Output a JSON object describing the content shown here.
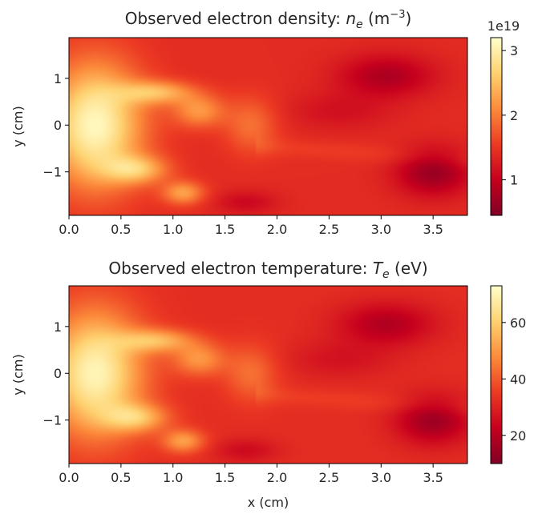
{
  "chart_data": [
    {
      "type": "heatmap",
      "title": "Observed electron density: n_e (m⁻³)",
      "title_parts": {
        "prefix": "Observed electron density: ",
        "var_main": "n",
        "var_sub": "e",
        "unit_open": " (m",
        "unit_sup": "−3",
        "unit_close": ")"
      },
      "xlabel": "",
      "ylabel": "y (cm)",
      "xlim": [
        0.0,
        3.83
      ],
      "ylim": [
        -1.93,
        1.87
      ],
      "x_ticks": [
        0.0,
        0.5,
        1.0,
        1.5,
        2.0,
        2.5,
        3.0,
        3.5
      ],
      "x_tick_labels": [
        "0.0",
        "0.5",
        "1.0",
        "1.5",
        "2.0",
        "2.5",
        "3.0",
        "3.5"
      ],
      "y_ticks": [
        1,
        0,
        -1
      ],
      "y_tick_labels": [
        "1",
        "0",
        "−1"
      ],
      "colormap": "YlOrRd_r",
      "colorbar": {
        "range": [
          4.5e+18,
          3.2e+19
        ],
        "ticks": [
          1e+19,
          2e+19,
          3e+19
        ],
        "tick_labels": [
          "1",
          "2",
          "3"
        ],
        "offset_label": "1e19"
      },
      "field": {
        "background": 1.35e+19,
        "peak": 3.2e+19,
        "minimum": 4.5e+18,
        "features": [
          {
            "x": 0.3,
            "y": 0.15,
            "value": 3.1e+19
          },
          {
            "x": 0.25,
            "y": 0.95,
            "value": 2.6e+19
          },
          {
            "x": 0.9,
            "y": 0.75,
            "value": 2.2e+19
          },
          {
            "x": 1.05,
            "y": -1.4,
            "value": 2.2e+19
          },
          {
            "x": 0.6,
            "y": -0.95,
            "value": 2.4e+19
          },
          {
            "x": 3.5,
            "y": -1.0,
            "value": 5e+18
          },
          {
            "x": 3.0,
            "y": 1.05,
            "value": 7e+18
          }
        ]
      }
    },
    {
      "type": "heatmap",
      "title": "Observed electron temperature: T_e (eV)",
      "title_parts": {
        "prefix": "Observed electron temperature: ",
        "var_main": "T",
        "var_sub": "e",
        "unit_open": " (eV)",
        "unit_sup": "",
        "unit_close": ""
      },
      "xlabel": "x (cm)",
      "ylabel": "y (cm)",
      "xlim": [
        0.0,
        3.83
      ],
      "ylim": [
        -1.93,
        1.87
      ],
      "x_ticks": [
        0.0,
        0.5,
        1.0,
        1.5,
        2.0,
        2.5,
        3.0,
        3.5
      ],
      "x_tick_labels": [
        "0.0",
        "0.5",
        "1.0",
        "1.5",
        "2.0",
        "2.5",
        "3.0",
        "3.5"
      ],
      "y_ticks": [
        1,
        0,
        -1
      ],
      "y_tick_labels": [
        "1",
        "0",
        "−1"
      ],
      "colormap": "YlOrRd_r",
      "colorbar": {
        "range": [
          10,
          73
        ],
        "ticks": [
          20,
          40,
          60
        ],
        "tick_labels": [
          "20",
          "40",
          "60"
        ],
        "offset_label": ""
      },
      "field": {
        "background": 32,
        "peak": 72,
        "minimum": 11,
        "features": [
          {
            "x": 0.3,
            "y": 0.15,
            "value": 70
          },
          {
            "x": 0.25,
            "y": 0.95,
            "value": 62
          },
          {
            "x": 0.9,
            "y": 0.75,
            "value": 55
          },
          {
            "x": 1.05,
            "y": -1.4,
            "value": 54
          },
          {
            "x": 0.6,
            "y": -0.95,
            "value": 58
          },
          {
            "x": 3.5,
            "y": -1.0,
            "value": 12
          },
          {
            "x": 3.0,
            "y": 1.05,
            "value": 16
          }
        ]
      }
    }
  ]
}
